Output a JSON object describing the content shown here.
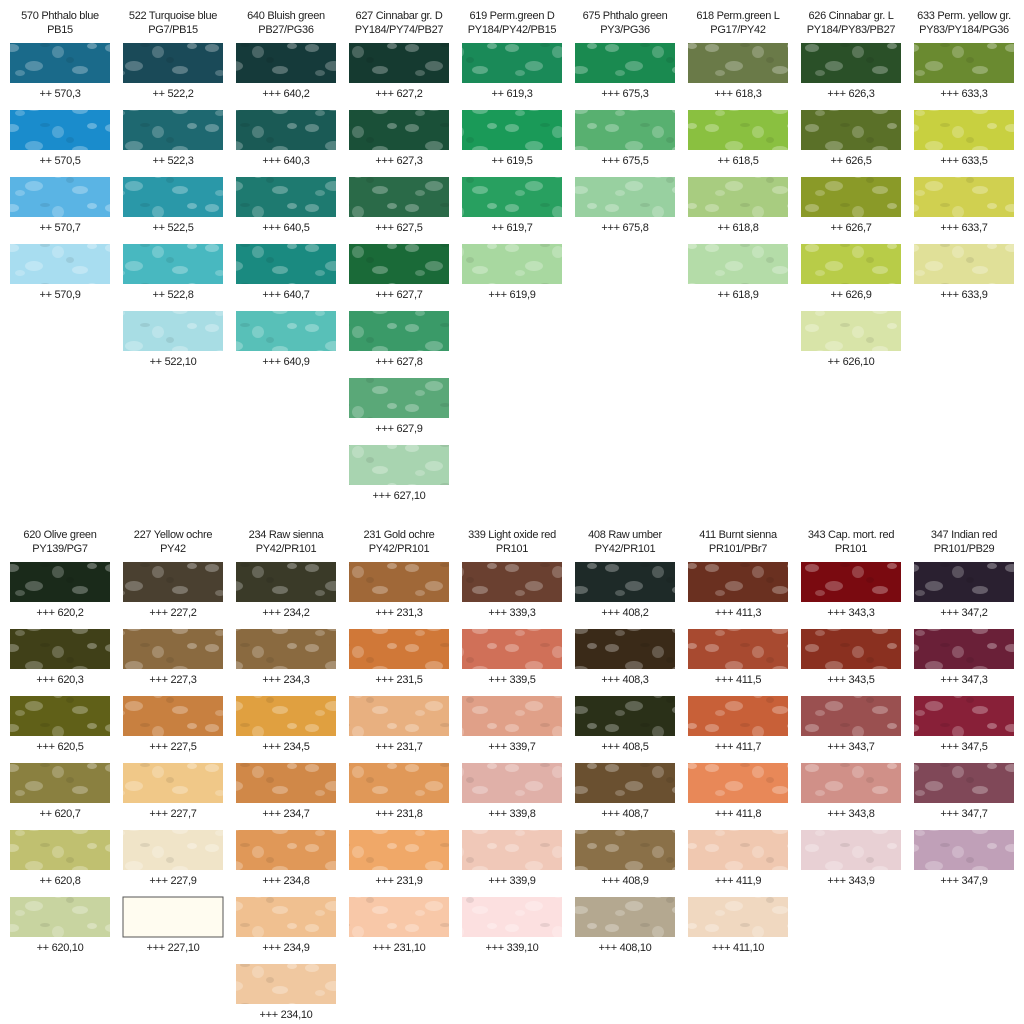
{
  "sections": [
    {
      "columns": [
        {
          "name": "570 Phthalo blue",
          "pigments": "PB15",
          "swatches": [
            {
              "label": "++ 570,3",
              "color": "#1a6a8a"
            },
            {
              "label": "++ 570,5",
              "color": "#1a8ccc"
            },
            {
              "label": "++ 570,7",
              "color": "#5ab4e4"
            },
            {
              "label": "++ 570,9",
              "color": "#a8ddf0"
            }
          ]
        },
        {
          "name": "522 Turquoise blue",
          "pigments": "PG7/PB15",
          "swatches": [
            {
              "label": "++ 522,2",
              "color": "#1a4a58"
            },
            {
              "label": "++ 522,3",
              "color": "#1e6870"
            },
            {
              "label": "++ 522,5",
              "color": "#2a98a8"
            },
            {
              "label": "++ 522,8",
              "color": "#48b8c0"
            },
            {
              "label": "++ 522,10",
              "color": "#a8dde4"
            }
          ]
        },
        {
          "name": "640 Bluish green",
          "pigments": "PB27/PG36",
          "swatches": [
            {
              "label": "+++ 640,2",
              "color": "#153a3a"
            },
            {
              "label": "+++ 640,3",
              "color": "#1a5a55"
            },
            {
              "label": "+++ 640,5",
              "color": "#1e7a70"
            },
            {
              "label": "+++ 640,7",
              "color": "#1a8a80"
            },
            {
              "label": "+++ 640,9",
              "color": "#58c0b8"
            }
          ]
        },
        {
          "name": "627 Cinnabar gr. D",
          "pigments": "PY184/PY74/PB27",
          "swatches": [
            {
              "label": "+++ 627,2",
              "color": "#153a30"
            },
            {
              "label": "+++ 627,3",
              "color": "#1a5038"
            },
            {
              "label": "+++ 627,5",
              "color": "#2a6a48"
            },
            {
              "label": "+++ 627,7",
              "color": "#1a6a38"
            },
            {
              "label": "+++ 627,8",
              "color": "#3a9a68"
            },
            {
              "label": "+++ 627,9",
              "color": "#5aa878"
            },
            {
              "label": "+++ 627,10",
              "color": "#a8d4b0"
            }
          ]
        },
        {
          "name": "619 Perm.green D",
          "pigments": "PY184/PY42/PB15",
          "swatches": [
            {
              "label": "++ 619,3",
              "color": "#1a8a58"
            },
            {
              "label": "++ 619,5",
              "color": "#1a9a58"
            },
            {
              "label": "++ 619,7",
              "color": "#28a060"
            },
            {
              "label": "+++ 619,9",
              "color": "#a8d8a0"
            }
          ]
        },
        {
          "name": "675 Phthalo green",
          "pigments": "PY3/PG36",
          "swatches": [
            {
              "label": "+++ 675,3",
              "color": "#1a8a50"
            },
            {
              "label": "+++ 675,5",
              "color": "#58b070"
            },
            {
              "label": "+++ 675,8",
              "color": "#98d0a0"
            }
          ]
        },
        {
          "name": "618 Perm.green L",
          "pigments": "PG17/PY42",
          "swatches": [
            {
              "label": "+++ 618,3",
              "color": "#6a7a48"
            },
            {
              "label": "++ 618,5",
              "color": "#8ac040"
            },
            {
              "label": "++ 618,8",
              "color": "#a8cc80"
            },
            {
              "label": "++ 618,9",
              "color": "#b4dca8"
            }
          ]
        },
        {
          "name": "626 Cinnabar gr. L",
          "pigments": "PY184/PY83/PB27",
          "swatches": [
            {
              "label": "+++ 626,3",
              "color": "#2a5028"
            },
            {
              "label": "++ 626,5",
              "color": "#5a7028"
            },
            {
              "label": "++ 626,7",
              "color": "#8a9a28"
            },
            {
              "label": "++ 626,9",
              "color": "#b8cc48"
            },
            {
              "label": "++ 626,10",
              "color": "#d8e4a8"
            }
          ]
        },
        {
          "name": "633 Perm. yellow gr.",
          "pigments": "PY83/PY184/PG36",
          "swatches": [
            {
              "label": "+++ 633,3",
              "color": "#6a8a30"
            },
            {
              "label": "+++ 633,5",
              "color": "#c8d040"
            },
            {
              "label": "+++ 633,7",
              "color": "#d0d050"
            },
            {
              "label": "+++ 633,9",
              "color": "#e0e098"
            }
          ]
        }
      ]
    },
    {
      "columns": [
        {
          "name": "620 Olive green",
          "pigments": "PY139/PG7",
          "swatches": [
            {
              "label": "+++ 620,2",
              "color": "#1a2a1a"
            },
            {
              "label": "+++ 620,3",
              "color": "#404018"
            },
            {
              "label": "+++ 620,5",
              "color": "#606018"
            },
            {
              "label": "++ 620,7",
              "color": "#8a8040"
            },
            {
              "label": "++ 620,8",
              "color": "#c0c070"
            },
            {
              "label": "++ 620,10",
              "color": "#c8d4a0"
            }
          ]
        },
        {
          "name": "227 Yellow ochre",
          "pigments": "PY42",
          "swatches": [
            {
              "label": "+++ 227,2",
              "color": "#4a4030"
            },
            {
              "label": "+++ 227,3",
              "color": "#8a6a40"
            },
            {
              "label": "+++ 227,5",
              "color": "#c88040"
            },
            {
              "label": "+++ 227,7",
              "color": "#f0c888"
            },
            {
              "label": "+++ 227,9",
              "color": "#f0e4c8"
            },
            {
              "label": "+++ 227,10",
              "color": "#fffcf0",
              "outlined": true
            }
          ]
        },
        {
          "name": "234 Raw sienna",
          "pigments": "PY42/PR101",
          "swatches": [
            {
              "label": "+++ 234,2",
              "color": "#3a3a28"
            },
            {
              "label": "+++ 234,3",
              "color": "#8a6a40"
            },
            {
              "label": "+++ 234,5",
              "color": "#e0a040"
            },
            {
              "label": "+++ 234,7",
              "color": "#d08848"
            },
            {
              "label": "+++ 234,8",
              "color": "#e09858"
            },
            {
              "label": "+++ 234,9",
              "color": "#f0c090"
            },
            {
              "label": "+++ 234,10",
              "color": "#f0c8a0"
            }
          ]
        },
        {
          "name": "231 Gold ochre",
          "pigments": "PY42/PR101",
          "swatches": [
            {
              "label": "+++ 231,3",
              "color": "#a06838"
            },
            {
              "label": "+++ 231,5",
              "color": "#d07838"
            },
            {
              "label": "+++ 231,7",
              "color": "#e8b080"
            },
            {
              "label": "+++ 231,8",
              "color": "#e09858"
            },
            {
              "label": "+++ 231,9",
              "color": "#f0a868"
            },
            {
              "label": "+++ 231,10",
              "color": "#f8c8a8"
            }
          ]
        },
        {
          "name": "339 Light oxide red",
          "pigments": "PR101",
          "swatches": [
            {
              "label": "+++ 339,3",
              "color": "#6a4030"
            },
            {
              "label": "+++ 339,5",
              "color": "#d07058"
            },
            {
              "label": "+++ 339,7",
              "color": "#e0a088"
            },
            {
              "label": "+++ 339,8",
              "color": "#e0b0a8"
            },
            {
              "label": "+++ 339,9",
              "color": "#f0c8b8"
            },
            {
              "label": "+++ 339,10",
              "color": "#fce0e0"
            }
          ]
        },
        {
          "name": "408 Raw umber",
          "pigments": "PY42/PR101",
          "swatches": [
            {
              "label": "+++ 408,2",
              "color": "#1e2a28"
            },
            {
              "label": "+++ 408,3",
              "color": "#3a2a18"
            },
            {
              "label": "+++ 408,5",
              "color": "#2a3018"
            },
            {
              "label": "+++ 408,7",
              "color": "#6a5030"
            },
            {
              "label": "+++ 408,9",
              "color": "#8a7048"
            },
            {
              "label": "+++ 408,10",
              "color": "#b4a890"
            }
          ]
        },
        {
          "name": "411 Burnt sienna",
          "pigments": "PR101/PBr7",
          "swatches": [
            {
              "label": "+++ 411,3",
              "color": "#6a3020"
            },
            {
              "label": "+++ 411,5",
              "color": "#a84a30"
            },
            {
              "label": "+++ 411,7",
              "color": "#c86038"
            },
            {
              "label": "+++ 411,8",
              "color": "#e88858"
            },
            {
              "label": "+++ 411,9",
              "color": "#f0c8b0"
            },
            {
              "label": "+++ 411,10",
              "color": "#f0d8c0"
            }
          ]
        },
        {
          "name": "343 Cap. mort. red",
          "pigments": "PR101",
          "swatches": [
            {
              "label": "+++ 343,3",
              "color": "#7a0a10"
            },
            {
              "label": "+++ 343,5",
              "color": "#8a3020"
            },
            {
              "label": "+++ 343,7",
              "color": "#9a5050"
            },
            {
              "label": "+++ 343,8",
              "color": "#d09088"
            },
            {
              "label": "+++ 343,9",
              "color": "#e8d0d4"
            }
          ]
        },
        {
          "name": "347 Indian  red",
          "pigments": "PR101/PB29",
          "swatches": [
            {
              "label": "+++ 347,2",
              "color": "#2a2030"
            },
            {
              "label": "+++ 347,3",
              "color": "#6a2038"
            },
            {
              "label": "+++ 347,5",
              "color": "#882038"
            },
            {
              "label": "+++ 347,7",
              "color": "#804858"
            },
            {
              "label": "+++ 347,9",
              "color": "#c0a0b8"
            }
          ]
        }
      ]
    }
  ]
}
